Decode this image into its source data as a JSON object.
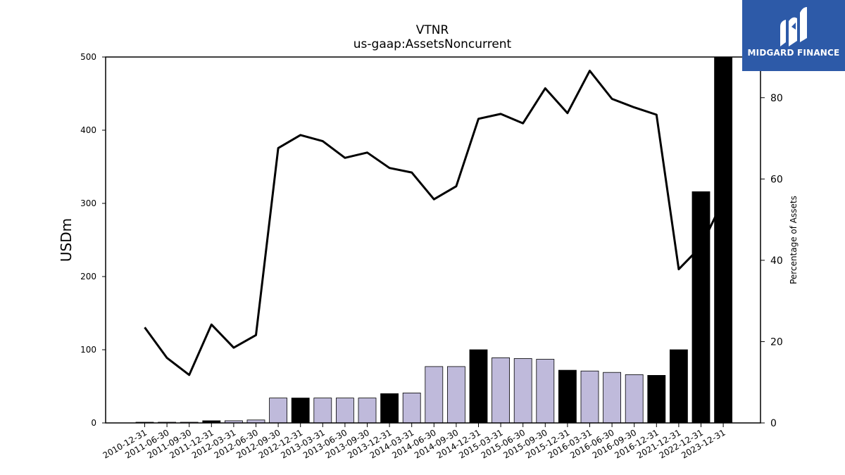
{
  "logo": {
    "text": "MIDGARD FINANCE",
    "icon": "midgard-logo-icon",
    "background": "#2d5aa8"
  },
  "chart_data": {
    "type": "bar",
    "title": "VTNR",
    "subtitle": "us-gaap:AssetsNoncurrent",
    "ylabel": "USDm",
    "ylabel_right": "Percentage of Assets",
    "ylim": [
      0,
      500
    ],
    "ylim_right": [
      0,
      90
    ],
    "yticks": [
      0,
      100,
      200,
      300,
      400,
      500
    ],
    "yticks_right": [
      0,
      20,
      40,
      60,
      80
    ],
    "categories": [
      "2010-12-31",
      "2011-06-30",
      "2011-09-30",
      "2011-12-31",
      "2012-03-31",
      "2012-06-30",
      "2012-09-30",
      "2012-12-31",
      "2013-03-31",
      "2013-06-30",
      "2013-09-30",
      "2013-12-31",
      "2014-03-31",
      "2014-06-30",
      "2014-09-30",
      "2014-12-31",
      "2015-03-31",
      "2015-06-30",
      "2015-09-30",
      "2015-12-31",
      "2016-03-31",
      "2016-06-30",
      "2016-09-30",
      "2016-12-31",
      "2021-12-31",
      "2022-12-31",
      "2023-12-31"
    ],
    "series": [
      {
        "kind": "bar",
        "values": [
          1,
          1,
          1,
          3,
          3,
          4,
          34,
          34,
          34,
          34,
          34,
          40,
          41,
          77,
          77,
          100,
          89,
          88,
          87,
          72,
          71,
          69,
          66,
          65,
          100,
          316,
          503
        ],
        "annual": [
          true,
          false,
          false,
          true,
          false,
          false,
          false,
          true,
          false,
          false,
          false,
          true,
          false,
          false,
          false,
          true,
          false,
          false,
          false,
          true,
          false,
          false,
          false,
          true,
          true,
          true,
          true
        ]
      },
      {
        "kind": "line",
        "axis": "right",
        "values": [
          23.5,
          16,
          11.8,
          24.2,
          18.5,
          21.6,
          67.6,
          70.8,
          69.3,
          65.2,
          66.5,
          62.7,
          61.6,
          55,
          58.2,
          74.8,
          76,
          73.7,
          82.3,
          76.2,
          86.6,
          79.7,
          77.6,
          75.8,
          37.8,
          43.4,
          54.8
        ]
      }
    ],
    "colors": {
      "annual_bar": "#000000",
      "quarter_bar": "#bfbadb",
      "line": "#000000"
    },
    "legend": "none",
    "grid": false
  }
}
